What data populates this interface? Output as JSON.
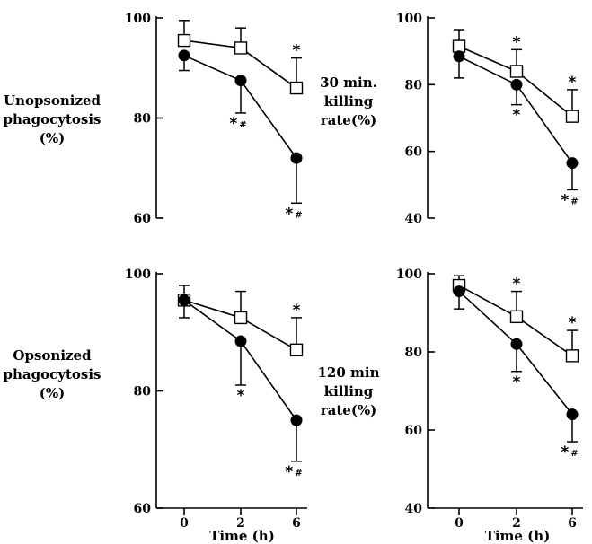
{
  "chart_data": [
    {
      "type": "line",
      "ylabel": [
        "Unopsonized",
        "phagocytosis",
        "(%)"
      ],
      "xlabel": "",
      "ylim": [
        60,
        100
      ],
      "yticks": [
        60,
        80,
        100
      ],
      "x": [
        0,
        2,
        6
      ],
      "xtick_labels": [],
      "series": [
        {
          "marker": "open-square",
          "values": [
            95.5,
            94,
            86
          ],
          "err_up": [
            4,
            4,
            6
          ],
          "annotations": [
            "",
            "",
            "*"
          ]
        },
        {
          "marker": "filled-circle",
          "values": [
            92.5,
            87.5,
            72
          ],
          "err_down": [
            3,
            6.5,
            9
          ],
          "annotations": [
            "",
            "*#",
            "*#"
          ]
        }
      ]
    },
    {
      "type": "line",
      "ylabel": [
        "30 min.",
        "killing",
        "rate(%)"
      ],
      "xlabel": "",
      "ylim": [
        40,
        100
      ],
      "yticks": [
        40,
        60,
        80,
        100
      ],
      "x": [
        0,
        2,
        6
      ],
      "xtick_labels": [],
      "series": [
        {
          "marker": "open-square",
          "values": [
            91.5,
            84,
            70.5
          ],
          "err_up": [
            5,
            6.5,
            8
          ],
          "annotations": [
            "",
            "*",
            "*"
          ]
        },
        {
          "marker": "filled-circle",
          "values": [
            88.5,
            80,
            56.5
          ],
          "err_down": [
            6.5,
            6,
            8
          ],
          "annotations": [
            "",
            "*",
            "*#"
          ]
        }
      ]
    },
    {
      "type": "line",
      "ylabel": [
        "Opsonized",
        "phagocytosis",
        "(%)"
      ],
      "xlabel": "Time (h)",
      "ylim": [
        60,
        100
      ],
      "yticks": [
        60,
        80,
        100
      ],
      "x": [
        0,
        2,
        6
      ],
      "xtick_labels": [
        "0",
        "2",
        "6"
      ],
      "series": [
        {
          "marker": "open-square",
          "values": [
            95.5,
            92.5,
            87
          ],
          "err_up": [
            2.5,
            4.5,
            5.5
          ],
          "annotations": [
            "",
            "",
            "*"
          ]
        },
        {
          "marker": "filled-circle",
          "values": [
            95.5,
            88.5,
            75
          ],
          "err_down": [
            3,
            7.5,
            7
          ],
          "annotations": [
            "",
            "*",
            "*#"
          ]
        }
      ]
    },
    {
      "type": "line",
      "ylabel": [
        "120 min",
        "killing",
        "rate(%)"
      ],
      "xlabel": "Time (h)",
      "ylim": [
        40,
        100
      ],
      "yticks": [
        40,
        60,
        80,
        100
      ],
      "x": [
        0,
        2,
        6
      ],
      "xtick_labels": [
        "0",
        "2",
        "6"
      ],
      "series": [
        {
          "marker": "open-square",
          "values": [
            97,
            89,
            79
          ],
          "err_up": [
            2.5,
            6.5,
            6.5
          ],
          "annotations": [
            "",
            "*",
            "*"
          ]
        },
        {
          "marker": "filled-circle",
          "values": [
            95.5,
            82,
            64
          ],
          "err_down": [
            4.5,
            7,
            7
          ],
          "annotations": [
            "",
            "*",
            "*#"
          ]
        }
      ]
    }
  ]
}
